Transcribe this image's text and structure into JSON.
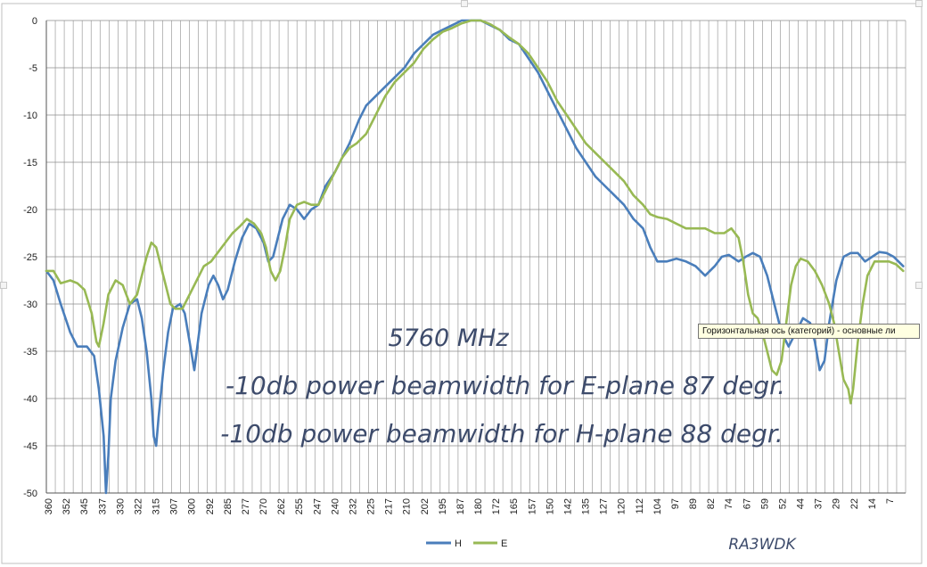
{
  "tooltip": "Горизонтальная ось (категорий)  - основные ли",
  "signature": "RA3WDK",
  "annotations": [
    "5760 MHz",
    "-10db power beamwidth for E-plane 87 degr.",
    "-10db power beamwidth for H-plane 88 degr."
  ],
  "colors": {
    "H": "#4a7ebb",
    "E": "#98b954",
    "grid": "#8c8c8c",
    "frame": "#bfbfbf"
  },
  "chart_data": {
    "type": "line",
    "title": "",
    "xlabel": "",
    "ylabel": "",
    "ylim": [
      -50,
      0
    ],
    "yticks": [
      0,
      -5,
      -10,
      -15,
      -20,
      -25,
      -30,
      -35,
      -40,
      -45,
      -50
    ],
    "x_tick_labels": [
      "360",
      "352",
      "345",
      "337",
      "330",
      "322",
      "315",
      "307",
      "300",
      "292",
      "285",
      "277",
      "270",
      "262",
      "255",
      "247",
      "240",
      "232",
      "225",
      "217",
      "210",
      "202",
      "195",
      "187",
      "180",
      "172",
      "165",
      "157",
      "150",
      "142",
      "135",
      "127",
      "120",
      "112",
      "104",
      "97",
      "89",
      "82",
      "74",
      "67",
      "59",
      "52",
      "44",
      "37",
      "29",
      "22",
      "14",
      "7"
    ],
    "x_range": [
      360,
      0
    ],
    "grid": true,
    "legend_position": "bottom",
    "series": [
      {
        "name": "H",
        "color": "#4a7ebb",
        "points": [
          [
            360,
            -26.5
          ],
          [
            357,
            -27.5
          ],
          [
            354,
            -30
          ],
          [
            350,
            -33
          ],
          [
            347,
            -34.5
          ],
          [
            343,
            -34.5
          ],
          [
            340,
            -35.5
          ],
          [
            338,
            -39
          ],
          [
            336,
            -44
          ],
          [
            335,
            -50
          ],
          [
            334,
            -46
          ],
          [
            333,
            -40
          ],
          [
            331,
            -36
          ],
          [
            328,
            -32.5
          ],
          [
            325,
            -30
          ],
          [
            322,
            -29.5
          ],
          [
            320,
            -31.5
          ],
          [
            318,
            -35
          ],
          [
            316,
            -40
          ],
          [
            315,
            -44
          ],
          [
            314,
            -45
          ],
          [
            313,
            -42
          ],
          [
            311,
            -37
          ],
          [
            309,
            -33
          ],
          [
            307,
            -30.5
          ],
          [
            304,
            -30
          ],
          [
            302,
            -31
          ],
          [
            300,
            -34
          ],
          [
            298,
            -37
          ],
          [
            297,
            -35
          ],
          [
            295,
            -31
          ],
          [
            292,
            -28
          ],
          [
            290,
            -27
          ],
          [
            288,
            -28
          ],
          [
            286,
            -29.5
          ],
          [
            284,
            -28.5
          ],
          [
            281,
            -25.5
          ],
          [
            278,
            -23
          ],
          [
            275,
            -21.5
          ],
          [
            272,
            -22
          ],
          [
            269,
            -23.5
          ],
          [
            267,
            -25.5
          ],
          [
            265,
            -25
          ],
          [
            263,
            -23
          ],
          [
            261,
            -21
          ],
          [
            258,
            -19.5
          ],
          [
            255,
            -20
          ],
          [
            252,
            -21
          ],
          [
            249,
            -20
          ],
          [
            246,
            -19.5
          ],
          [
            243,
            -17.5
          ],
          [
            239,
            -16
          ],
          [
            236,
            -14.5
          ],
          [
            233,
            -13
          ],
          [
            229,
            -10.5
          ],
          [
            226,
            -9
          ],
          [
            222,
            -8
          ],
          [
            218,
            -7
          ],
          [
            214,
            -6
          ],
          [
            210,
            -5
          ],
          [
            206,
            -3.5
          ],
          [
            202,
            -2.5
          ],
          [
            198,
            -1.5
          ],
          [
            194,
            -1
          ],
          [
            190,
            -0.5
          ],
          [
            186,
            0
          ],
          [
            182,
            0
          ],
          [
            178,
            0
          ],
          [
            174,
            -0.5
          ],
          [
            170,
            -1
          ],
          [
            166,
            -2
          ],
          [
            162,
            -2.5
          ],
          [
            158,
            -4
          ],
          [
            154,
            -5.5
          ],
          [
            150,
            -7.5
          ],
          [
            146,
            -9.5
          ],
          [
            142,
            -11.5
          ],
          [
            138,
            -13.5
          ],
          [
            134,
            -15
          ],
          [
            130,
            -16.5
          ],
          [
            126,
            -17.5
          ],
          [
            122,
            -18.5
          ],
          [
            118,
            -19.5
          ],
          [
            114,
            -21
          ],
          [
            110,
            -22
          ],
          [
            107,
            -24
          ],
          [
            104,
            -25.5
          ],
          [
            100,
            -25.5
          ],
          [
            96,
            -25.2
          ],
          [
            92,
            -25.5
          ],
          [
            88,
            -26
          ],
          [
            84,
            -27
          ],
          [
            80,
            -26
          ],
          [
            77,
            -25
          ],
          [
            74,
            -24.8
          ],
          [
            70,
            -25.5
          ],
          [
            67,
            -25
          ],
          [
            64,
            -24.6
          ],
          [
            61,
            -25
          ],
          [
            58,
            -27
          ],
          [
            55,
            -30
          ],
          [
            52,
            -33
          ],
          [
            49,
            -34.5
          ],
          [
            46,
            -33
          ],
          [
            43,
            -31.5
          ],
          [
            40,
            -32
          ],
          [
            38,
            -34
          ],
          [
            36,
            -37
          ],
          [
            34,
            -36
          ],
          [
            32,
            -32
          ],
          [
            29,
            -27.5
          ],
          [
            26,
            -25
          ],
          [
            23,
            -24.6
          ],
          [
            20,
            -24.6
          ],
          [
            17,
            -25.5
          ],
          [
            14,
            -25
          ],
          [
            11,
            -24.5
          ],
          [
            8,
            -24.6
          ],
          [
            5,
            -25
          ],
          [
            3,
            -25.5
          ],
          [
            1,
            -26
          ]
        ]
      },
      {
        "name": "E",
        "color": "#98b954",
        "points": [
          [
            360,
            -26.5
          ],
          [
            357,
            -26.5
          ],
          [
            354,
            -27.8
          ],
          [
            350,
            -27.5
          ],
          [
            347,
            -27.8
          ],
          [
            344,
            -28.5
          ],
          [
            341,
            -31
          ],
          [
            339,
            -34
          ],
          [
            338,
            -34.5
          ],
          [
            336,
            -32
          ],
          [
            334,
            -29
          ],
          [
            331,
            -27.5
          ],
          [
            328,
            -28
          ],
          [
            325,
            -30
          ],
          [
            322,
            -29
          ],
          [
            320,
            -27
          ],
          [
            318,
            -25
          ],
          [
            316,
            -23.5
          ],
          [
            314,
            -24
          ],
          [
            312,
            -26
          ],
          [
            310,
            -28
          ],
          [
            308,
            -30
          ],
          [
            306,
            -30.5
          ],
          [
            303,
            -30.5
          ],
          [
            300,
            -29
          ],
          [
            297,
            -27.5
          ],
          [
            294,
            -26
          ],
          [
            291,
            -25.5
          ],
          [
            288,
            -24.5
          ],
          [
            285,
            -23.5
          ],
          [
            282,
            -22.5
          ],
          [
            279,
            -21.8
          ],
          [
            276,
            -21
          ],
          [
            273,
            -21.5
          ],
          [
            270,
            -22.5
          ],
          [
            268,
            -24
          ],
          [
            266,
            -26.5
          ],
          [
            264,
            -27.5
          ],
          [
            262,
            -26.5
          ],
          [
            260,
            -24
          ],
          [
            258,
            -21
          ],
          [
            255,
            -19.5
          ],
          [
            252,
            -19.2
          ],
          [
            249,
            -19.5
          ],
          [
            246,
            -19.5
          ],
          [
            243,
            -18
          ],
          [
            239,
            -16
          ],
          [
            236,
            -14.5
          ],
          [
            233,
            -13.5
          ],
          [
            230,
            -13
          ],
          [
            226,
            -12
          ],
          [
            222,
            -10
          ],
          [
            218,
            -8
          ],
          [
            214,
            -6.5
          ],
          [
            210,
            -5.5
          ],
          [
            206,
            -4.5
          ],
          [
            202,
            -3
          ],
          [
            198,
            -2
          ],
          [
            194,
            -1.2
          ],
          [
            190,
            -0.8
          ],
          [
            186,
            -0.3
          ],
          [
            182,
            0
          ],
          [
            178,
            0
          ],
          [
            174,
            -0.4
          ],
          [
            170,
            -1
          ],
          [
            166,
            -1.8
          ],
          [
            162,
            -2.5
          ],
          [
            158,
            -3.5
          ],
          [
            154,
            -5
          ],
          [
            150,
            -6.5
          ],
          [
            146,
            -8.5
          ],
          [
            142,
            -10
          ],
          [
            138,
            -11.5
          ],
          [
            134,
            -13
          ],
          [
            130,
            -14
          ],
          [
            126,
            -15
          ],
          [
            122,
            -16
          ],
          [
            118,
            -17
          ],
          [
            114,
            -18.5
          ],
          [
            110,
            -19.5
          ],
          [
            107,
            -20.5
          ],
          [
            104,
            -20.8
          ],
          [
            100,
            -21
          ],
          [
            96,
            -21.5
          ],
          [
            92,
            -22
          ],
          [
            88,
            -22
          ],
          [
            84,
            -22
          ],
          [
            80,
            -22.5
          ],
          [
            76,
            -22.5
          ],
          [
            73,
            -22
          ],
          [
            70,
            -23
          ],
          [
            68,
            -25.5
          ],
          [
            66,
            -29
          ],
          [
            64,
            -31
          ],
          [
            62,
            -31.5
          ],
          [
            60,
            -33
          ],
          [
            58,
            -35
          ],
          [
            56,
            -37
          ],
          [
            54,
            -37.5
          ],
          [
            52,
            -36
          ],
          [
            50,
            -32
          ],
          [
            48,
            -28
          ],
          [
            46,
            -26
          ],
          [
            44,
            -25.2
          ],
          [
            41,
            -25.5
          ],
          [
            38,
            -26.5
          ],
          [
            35,
            -28
          ],
          [
            32,
            -30
          ],
          [
            30,
            -32
          ],
          [
            28,
            -35
          ],
          [
            26,
            -38
          ],
          [
            24,
            -39
          ],
          [
            23,
            -40.5
          ],
          [
            22,
            -39
          ],
          [
            20,
            -34
          ],
          [
            18,
            -30
          ],
          [
            16,
            -27
          ],
          [
            13,
            -25.5
          ],
          [
            10,
            -25.5
          ],
          [
            7,
            -25.5
          ],
          [
            4,
            -25.8
          ],
          [
            1,
            -26.5
          ]
        ]
      }
    ]
  }
}
